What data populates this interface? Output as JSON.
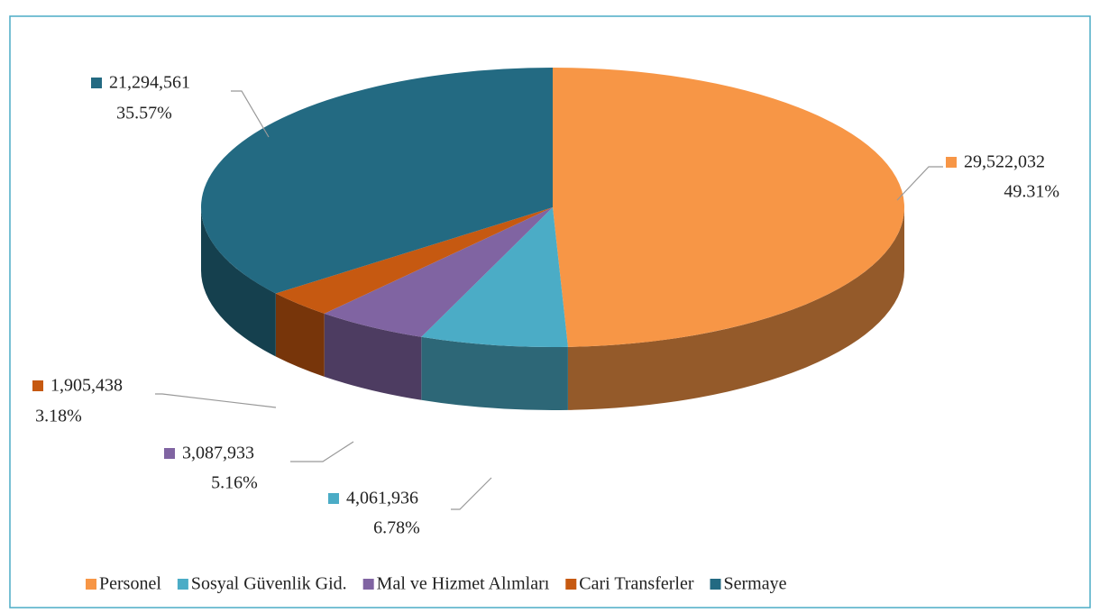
{
  "chart_data": {
    "type": "pie3d",
    "categories": [
      "Personel",
      "Sosyal Güvenlik Gid.",
      "Mal ve Hizmet Alımları",
      "Cari Transferler",
      "Sermaye"
    ],
    "values": [
      29522032,
      4061936,
      3087933,
      1905438,
      21294561
    ],
    "value_labels": [
      "29,522,032",
      "4,061,936",
      "3,087,933",
      "1,905,438",
      "21,294,561"
    ],
    "percent_labels": [
      "49.31%",
      "6.78%",
      "5.16%",
      "3.18%",
      "35.57%"
    ],
    "colors": [
      "#f79646",
      "#4bacc6",
      "#8064a2",
      "#c65911",
      "#236a82"
    ],
    "legend": "bottom"
  }
}
